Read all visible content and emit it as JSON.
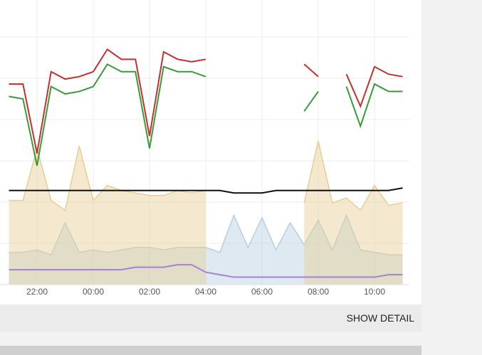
{
  "chart_data": {
    "type": "line",
    "categories": [
      null,
      null,
      "22:00",
      null,
      null,
      null,
      "00:00",
      null,
      null,
      null,
      "02:00",
      null,
      null,
      null,
      "04:00",
      null,
      null,
      null,
      "06:00",
      null,
      null,
      null,
      "08:00",
      null,
      null,
      null,
      "10:00",
      null,
      null
    ],
    "ylim": [
      0,
      100
    ],
    "series": [
      {
        "color": "#b9cfe0",
        "area": true,
        "values": [
          13,
          13,
          14,
          12,
          25,
          13,
          14,
          13,
          14,
          15,
          15,
          14,
          15,
          15,
          15,
          13,
          28,
          15,
          27,
          14,
          25,
          16,
          26,
          14,
          28,
          14,
          13,
          12,
          12
        ]
      },
      {
        "color": "#e6cf95",
        "area": true,
        "values": [
          34,
          34,
          55,
          34,
          30,
          56,
          34,
          40,
          38,
          37,
          36,
          36,
          38,
          37,
          38,
          null,
          null,
          null,
          null,
          null,
          null,
          33,
          58,
          33,
          35,
          30,
          40,
          32,
          33
        ]
      },
      {
        "color": "#a67fd8",
        "values": [
          6,
          6,
          6,
          6,
          6,
          6,
          6,
          6,
          6,
          7,
          7,
          7,
          8,
          8,
          5,
          4,
          3,
          3,
          3,
          3,
          3,
          3,
          3,
          3,
          3,
          3,
          3,
          4,
          4
        ]
      },
      {
        "color": "#111111",
        "values": [
          38,
          38,
          38,
          38,
          38,
          38,
          38,
          38,
          38,
          38,
          38,
          38,
          38,
          38,
          38,
          38,
          37,
          37,
          37,
          38,
          38,
          38,
          38,
          38,
          38,
          38,
          38,
          38,
          39
        ]
      },
      {
        "color": "#3a9a3a",
        "values": [
          76,
          75,
          48,
          80,
          77,
          78,
          80,
          89,
          86,
          86,
          55,
          88,
          86,
          86,
          84,
          null,
          null,
          null,
          null,
          null,
          null,
          70,
          78,
          null,
          80,
          64,
          81,
          78,
          78
        ]
      },
      {
        "color": "#c62f2f",
        "values": [
          81,
          81,
          53,
          86,
          83,
          84,
          86,
          95,
          91,
          91,
          60,
          94,
          91,
          90,
          91,
          null,
          null,
          null,
          null,
          null,
          null,
          89,
          84,
          null,
          85,
          72,
          88,
          85,
          84
        ]
      }
    ]
  },
  "button": "SHOW DETAIL"
}
